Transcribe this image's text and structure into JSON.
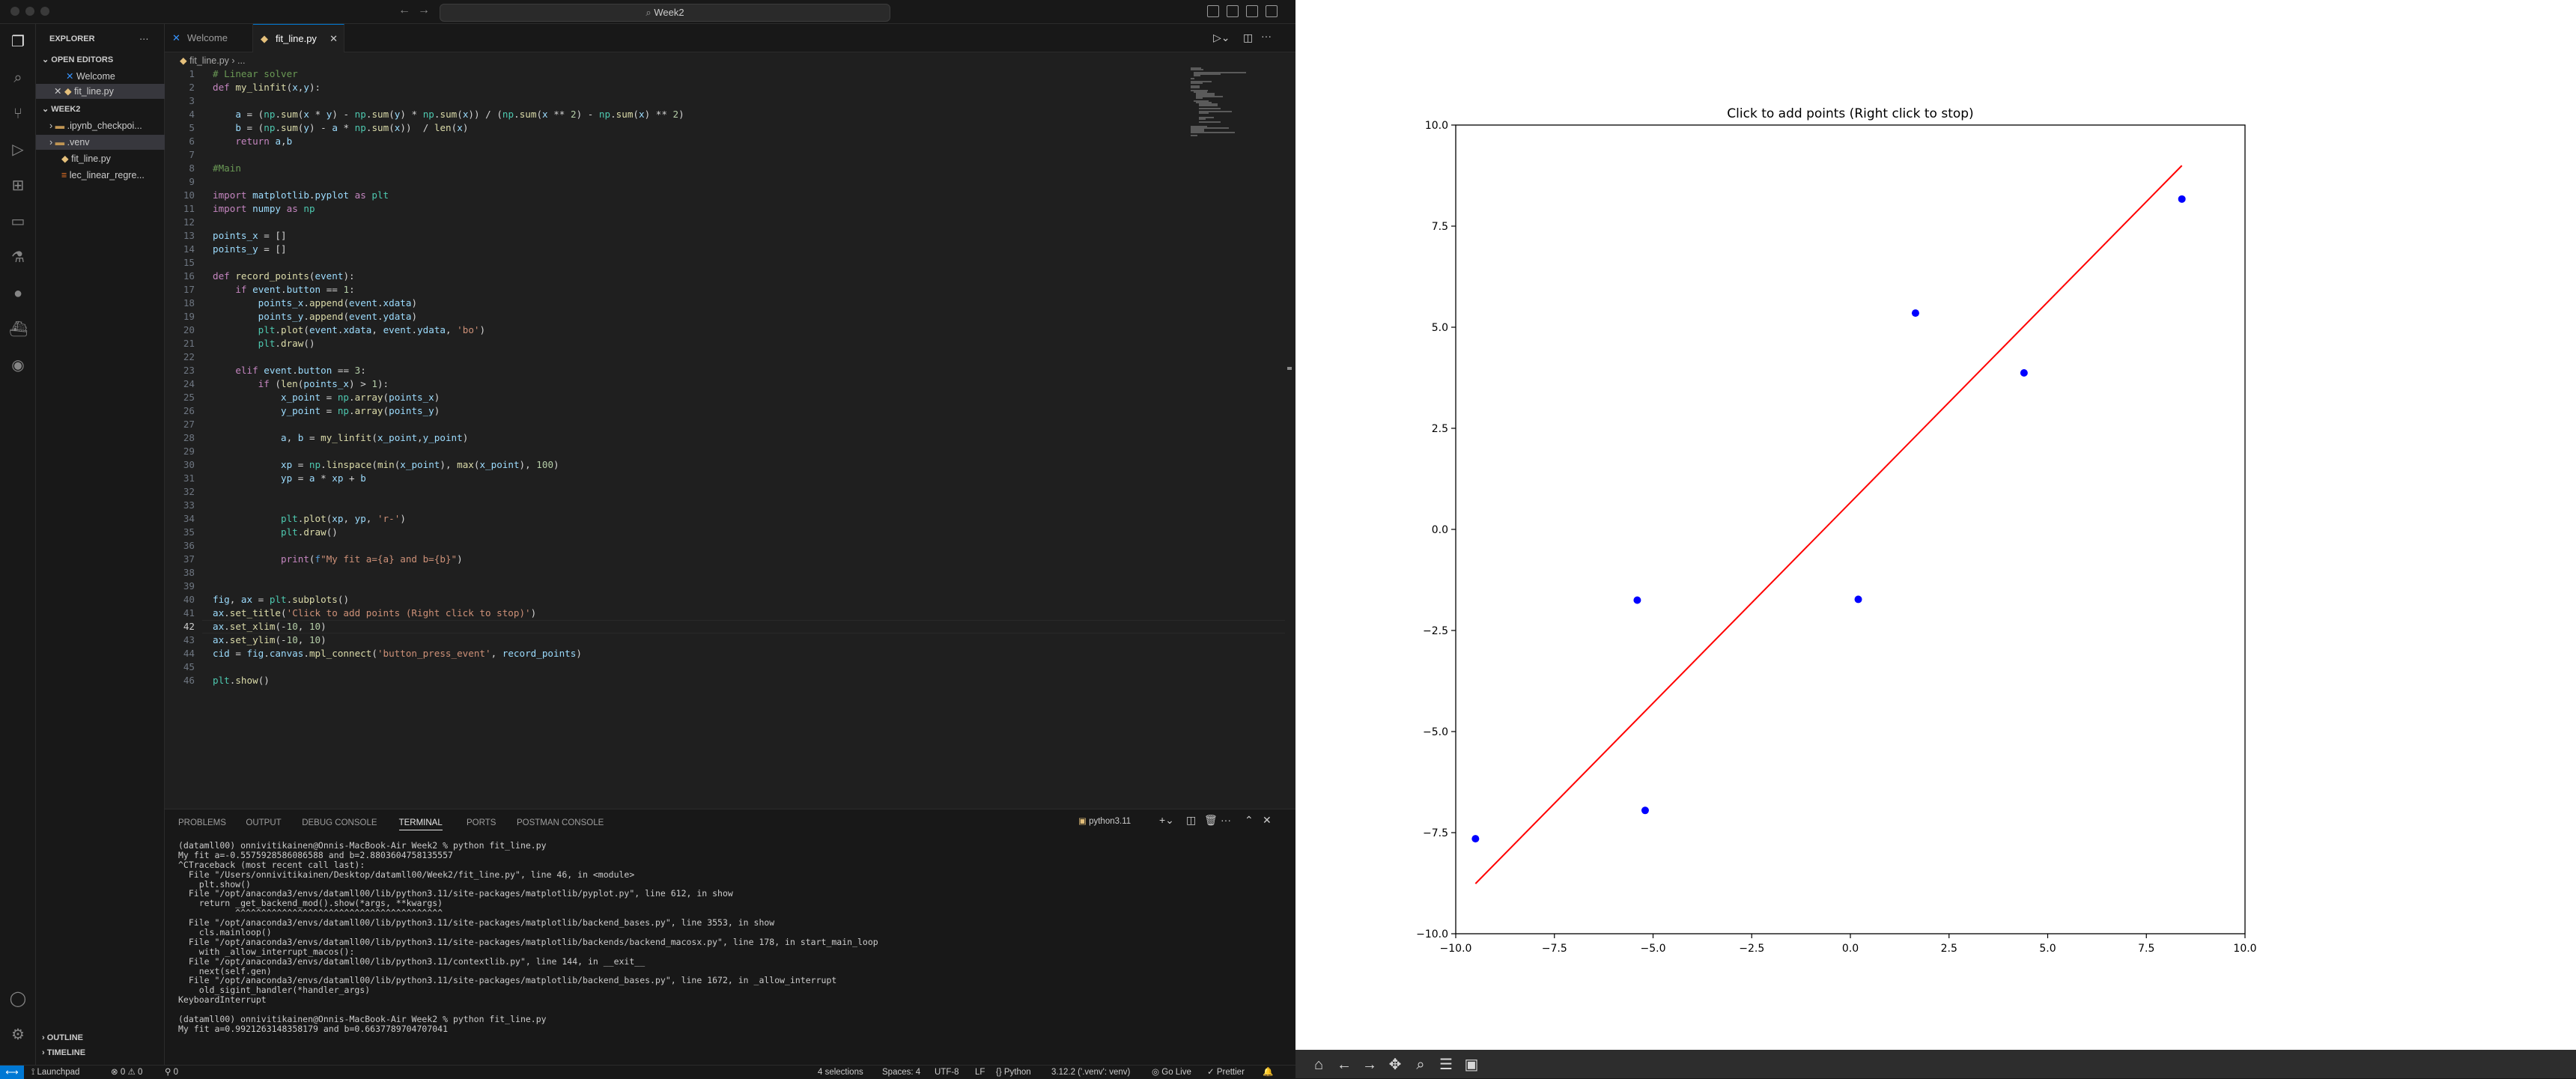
{
  "window": {
    "command_center": "Week2"
  },
  "sidebar": {
    "title": "EXPLORER",
    "open_editors_label": "OPEN EDITORS",
    "open_editors": [
      {
        "label": "Welcome"
      },
      {
        "label": "fit_line.py"
      }
    ],
    "folder_label": "WEEK2",
    "tree": [
      {
        "label": ".ipynb_checkpoi..."
      },
      {
        "label": ".venv"
      },
      {
        "label": "fit_line.py"
      },
      {
        "label": "lec_linear_regre..."
      }
    ],
    "outline_label": "OUTLINE",
    "timeline_label": "TIMELINE"
  },
  "tabs": [
    {
      "label": "Welcome"
    },
    {
      "label": "fit_line.py"
    }
  ],
  "breadcrumb": {
    "file": "fit_line.py",
    "rest": "..."
  },
  "editor": {
    "current_line": 42,
    "lines": [
      "# Linear solver",
      "def my_linfit(x,y):",
      "",
      "    a = (np.sum(x * y) - np.sum(y) * np.sum(x)) / (np.sum(x ** 2) - np.sum(x) ** 2)",
      "    b = (np.sum(y) - a * np.sum(x))  / len(x)",
      "    return a,b",
      "",
      "#Main",
      "",
      "import matplotlib.pyplot as plt",
      "import numpy as np",
      "",
      "points_x = []",
      "points_y = []",
      "",
      "def record_points(event):",
      "    if event.button == 1:",
      "        points_x.append(event.xdata)",
      "        points_y.append(event.ydata)",
      "        plt.plot(event.xdata, event.ydata, 'bo')",
      "        plt.draw()",
      "",
      "    elif event.button == 3:",
      "        if (len(points_x) > 1):",
      "            x_point = np.array(points_x)",
      "            y_point = np.array(points_y)",
      "",
      "            a, b = my_linfit(x_point,y_point)",
      "",
      "            xp = np.linspace(min(x_point), max(x_point), 100)",
      "            yp = a * xp + b",
      "",
      "",
      "            plt.plot(xp, yp, 'r-')",
      "            plt.draw()",
      "",
      "            print(f\"My fit a={a} and b={b}\")",
      "",
      "",
      "fig, ax = plt.subplots()",
      "ax.set_title('Click to add points (Right click to stop)')",
      "ax.set_xlim(-10, 10)",
      "ax.set_ylim(-10, 10)",
      "cid = fig.canvas.mpl_connect('button_press_event', record_points)",
      "",
      "plt.show()"
    ]
  },
  "panel": {
    "tabs": [
      "PROBLEMS",
      "OUTPUT",
      "DEBUG CONSOLE",
      "TERMINAL",
      "PORTS",
      "POSTMAN CONSOLE"
    ],
    "active_tab": "TERMINAL",
    "terminal_name": "python3.11",
    "terminal_lines": [
      "(datamll00) onnivitikainen@Onnis-MacBook-Air Week2 % python fit_line.py",
      "My fit a=-0.5575928586086588 and b=2.8803604758135557",
      "^CTraceback (most recent call last):",
      "  File \"/Users/onnivitikainen/Desktop/datamll00/Week2/fit_line.py\", line 46, in <module>",
      "    plt.show()",
      "  File \"/opt/anaconda3/envs/datamll00/lib/python3.11/site-packages/matplotlib/pyplot.py\", line 612, in show",
      "    return _get_backend_mod().show(*args, **kwargs)",
      "           ^^^^^^^^^^^^^^^^^^^^^^^^^^^^^^^^^^^^^^^^",
      "  File \"/opt/anaconda3/envs/datamll00/lib/python3.11/site-packages/matplotlib/backend_bases.py\", line 3553, in show",
      "    cls.mainloop()",
      "  File \"/opt/anaconda3/envs/datamll00/lib/python3.11/site-packages/matplotlib/backends/backend_macosx.py\", line 178, in start_main_loop",
      "    with _allow_interrupt_macos():",
      "  File \"/opt/anaconda3/envs/datamll00/lib/python3.11/contextlib.py\", line 144, in __exit__",
      "    next(self.gen)",
      "  File \"/opt/anaconda3/envs/datamll00/lib/python3.11/site-packages/matplotlib/backend_bases.py\", line 1672, in _allow_interrupt",
      "    old_sigint_handler(*handler_args)",
      "KeyboardInterrupt",
      "",
      "(datamll00) onnivitikainen@Onnis-MacBook-Air Week2 % python fit_line.py",
      "My fit a=0.9921263148358179 and b=0.6637789704707041",
      ""
    ]
  },
  "statusbar": {
    "launchpad": "Launchpad",
    "errors": "0",
    "warnings": "0",
    "ports": "0",
    "selections": "4 selections",
    "spaces": "Spaces: 4",
    "encoding": "UTF-8",
    "eol": "LF",
    "language": "Python",
    "interpreter": "3.12.2 ('.venv': venv)",
    "golive": "Go Live",
    "prettier": "Prettier"
  },
  "chart_data": {
    "type": "scatter",
    "title": "Click to add points (Right click to stop)",
    "xlim": [
      -10,
      10
    ],
    "ylim": [
      -10,
      10
    ],
    "xticks": [
      "−10.0",
      "−7.5",
      "−5.0",
      "−2.5",
      "0.0",
      "2.5",
      "5.0",
      "7.5",
      "10.0"
    ],
    "yticks": [
      "−10.0",
      "−7.5",
      "−5.0",
      "−2.5",
      "0.0",
      "2.5",
      "5.0",
      "7.5",
      "10.0"
    ],
    "points": [
      {
        "x": -9.5,
        "y": -7.65
      },
      {
        "x": -5.4,
        "y": -1.75
      },
      {
        "x": -5.2,
        "y": -6.95
      },
      {
        "x": 0.2,
        "y": -1.73
      },
      {
        "x": 1.65,
        "y": 5.35
      },
      {
        "x": 4.4,
        "y": 3.87
      },
      {
        "x": 8.4,
        "y": 8.17
      }
    ],
    "line": {
      "slope": 0.9921263148358179,
      "intercept": 0.6637789704707041,
      "x_from": -9.5,
      "x_to": 8.4
    },
    "point_color": "#0000ff",
    "line_color": "#ff0000"
  }
}
